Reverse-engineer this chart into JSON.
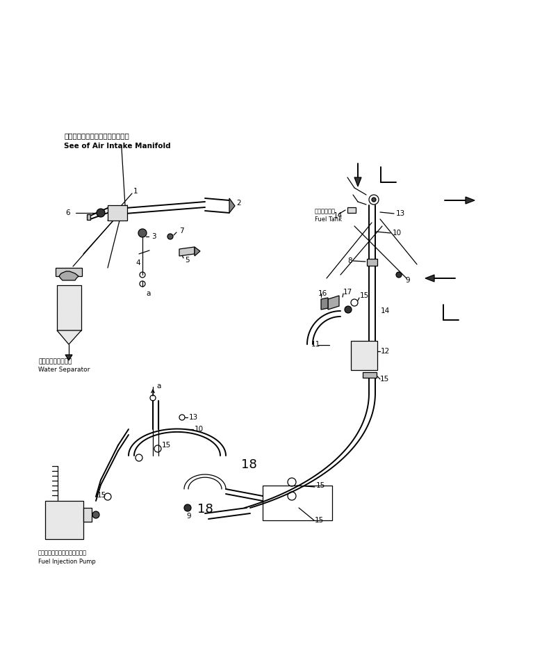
{
  "bg_color": "#ffffff",
  "line_color": "#000000",
  "fig_width": 7.8,
  "fig_height": 9.43,
  "dpi": 100,
  "annotations": {
    "air_intake_jp": "エアーインイクマニホールド参照",
    "air_intake_en": "See of Air Intake Manifold",
    "water_sep_jp": "ウォータセパレータ",
    "water_sep_en": "Water Separator",
    "fuel_tank_jp": "フェルタンク",
    "fuel_tank_en": "Fuel Tank",
    "fuel_pump_jp": "フェルインジェクションポンプ",
    "fuel_pump_en": "Fuel Injection Pump"
  }
}
